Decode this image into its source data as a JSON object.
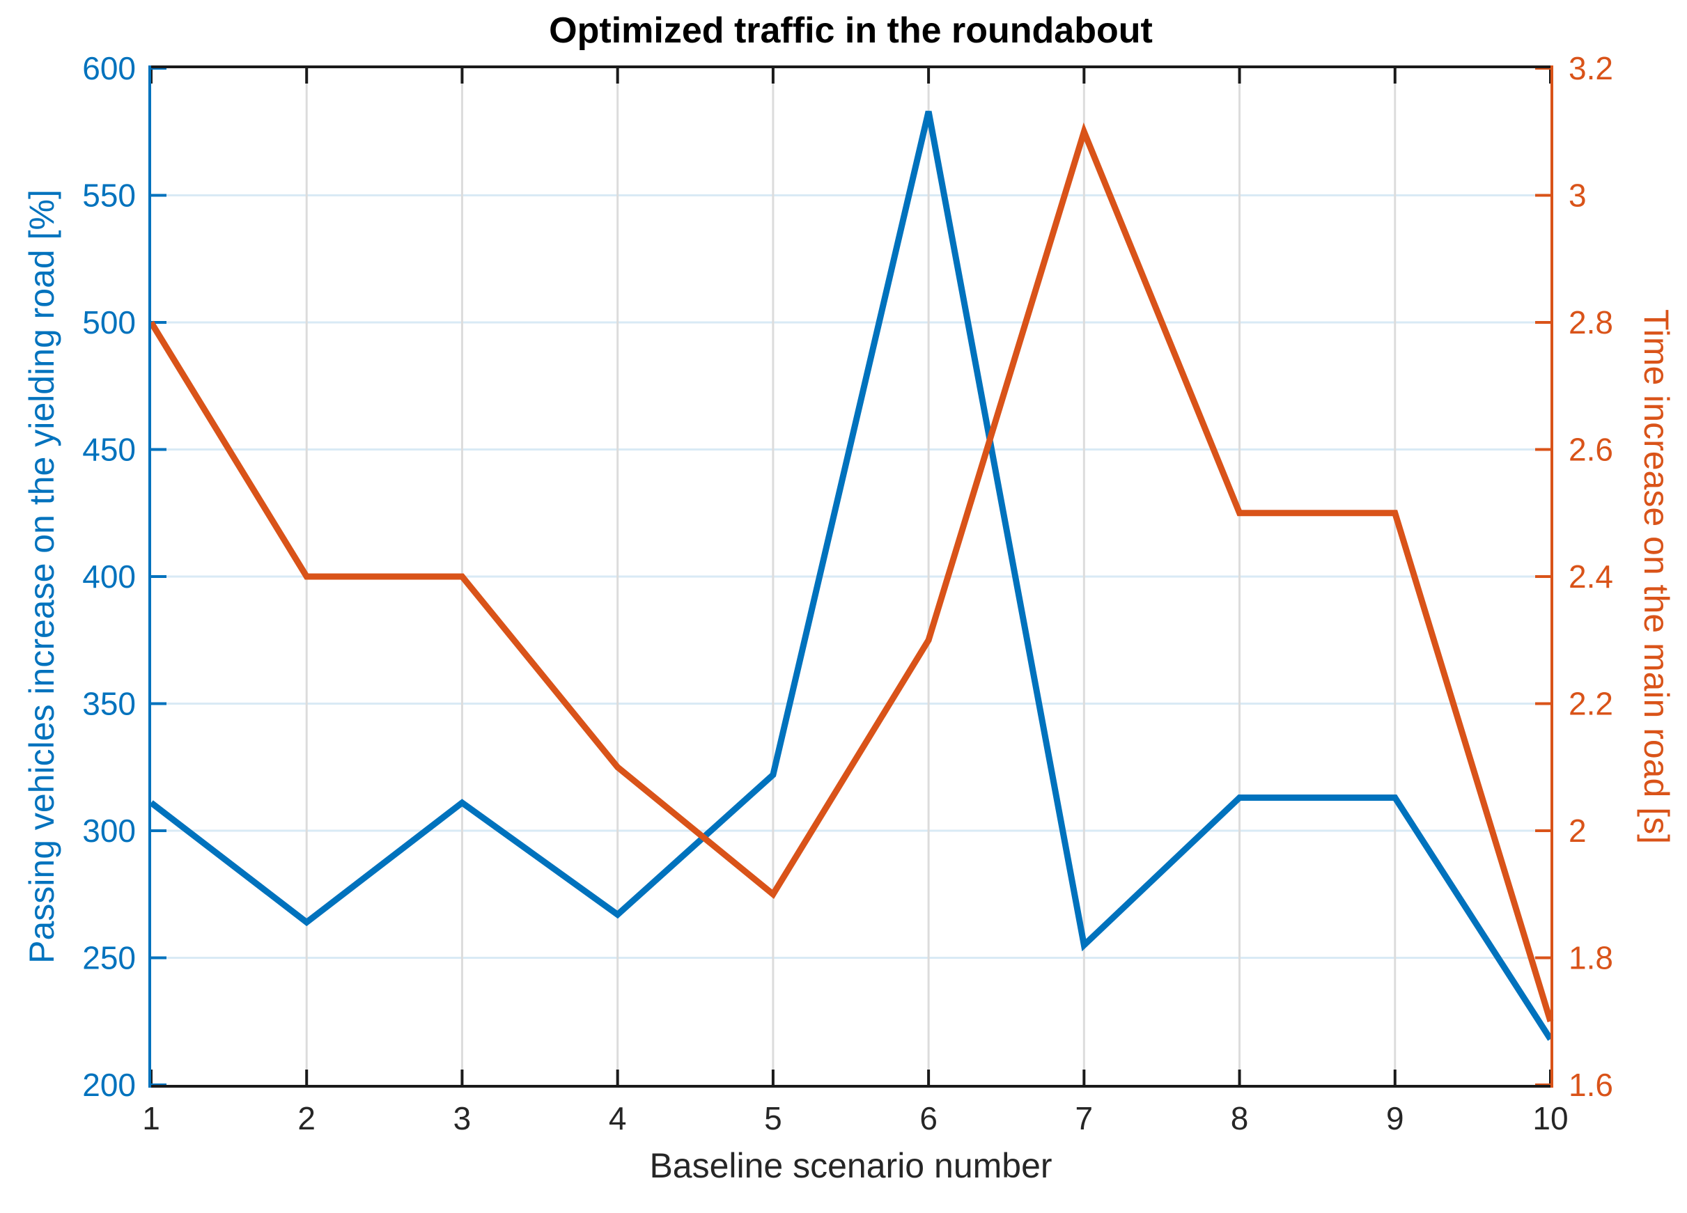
{
  "title": "Optimized traffic in the roundabout",
  "x_axis": {
    "label": "Baseline scenario number",
    "tick_values": [
      1,
      2,
      3,
      4,
      5,
      6,
      7,
      8,
      9,
      10
    ],
    "tick_labels": [
      "1",
      "2",
      "3",
      "4",
      "5",
      "6",
      "7",
      "8",
      "9",
      "10"
    ],
    "range": [
      1,
      10
    ],
    "color": "#262626"
  },
  "left_axis": {
    "label": "Passing vehicles increase on the yielding road [%]",
    "tick_values": [
      200,
      250,
      300,
      350,
      400,
      450,
      500,
      550,
      600
    ],
    "tick_labels": [
      "200",
      "250",
      "300",
      "350",
      "400",
      "450",
      "500",
      "550",
      "600"
    ],
    "range": [
      200,
      600
    ],
    "color": "#0072BD"
  },
  "right_axis": {
    "label": "Time increase on the main road [s]",
    "tick_values": [
      1.6,
      1.8,
      2.0,
      2.2,
      2.4,
      2.6,
      2.8,
      3.0,
      3.2
    ],
    "tick_labels": [
      "1.6",
      "1.8",
      "2",
      "2.2",
      "2.4",
      "2.6",
      "2.8",
      "3",
      "3.2"
    ],
    "range": [
      1.6,
      3.2
    ],
    "color": "#D95319"
  },
  "chart_data": {
    "type": "line",
    "title": "Optimized traffic in the roundabout",
    "xlabel": "Baseline scenario number",
    "x": [
      1,
      2,
      3,
      4,
      5,
      6,
      7,
      8,
      9,
      10
    ],
    "series": [
      {
        "name": "Passing vehicles increase on the yielding road [%]",
        "axis": "left",
        "color": "#0072BD",
        "values": [
          311,
          264,
          311,
          267,
          322,
          583,
          255,
          313,
          313,
          218
        ]
      },
      {
        "name": "Time increase on the main road [s]",
        "axis": "right",
        "color": "#D95319",
        "values": [
          2.8,
          2.4,
          2.4,
          2.1,
          1.9,
          2.3,
          3.1,
          2.5,
          2.5,
          1.7
        ]
      }
    ],
    "grid": true,
    "legend": false,
    "xlim": [
      1,
      10
    ],
    "ylim_left": [
      200,
      600
    ],
    "ylim_right": [
      1.6,
      3.2
    ]
  },
  "style": {
    "h_grid_color": "#d9eaf5",
    "v_grid_color": "#dcdcdc",
    "top_bottom_spine_color": "#1a1a1a",
    "line_width": 9
  }
}
